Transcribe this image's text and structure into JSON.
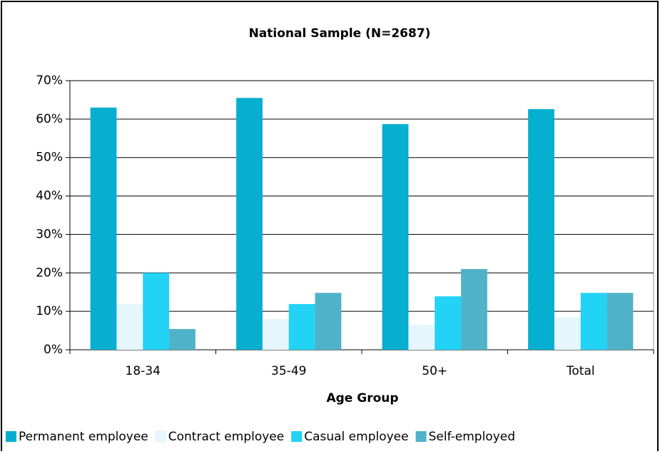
{
  "chart_data": {
    "type": "bar",
    "title": "National Sample (N=2687)",
    "x_label": "Age Group",
    "categories": [
      "18-34",
      "35-49",
      "50+",
      "Total"
    ],
    "series": [
      {
        "name": "Permanent employee",
        "color": "#06afd0",
        "values": [
          63,
          65.5,
          58.7,
          62.6
        ]
      },
      {
        "name": "Contract employee",
        "color": "#e6f6fd",
        "values": [
          11.9,
          8,
          6.5,
          8.5
        ]
      },
      {
        "name": "Casual employee",
        "color": "#22d3f6",
        "values": [
          20,
          11.9,
          13.9,
          14.8
        ]
      },
      {
        "name": "Self-employed",
        "color": "#4fb2c8",
        "values": [
          5.4,
          14.8,
          21,
          14.8
        ]
      }
    ],
    "ylim": [
      0,
      70
    ],
    "yticks": [
      {
        "value": 0,
        "label": "0%"
      },
      {
        "value": 10,
        "label": "10%"
      },
      {
        "value": 20,
        "label": "20%"
      },
      {
        "value": 30,
        "label": "30%"
      },
      {
        "value": 40,
        "label": "40%"
      },
      {
        "value": 50,
        "label": "50%"
      },
      {
        "value": 60,
        "label": "60%"
      },
      {
        "value": 70,
        "label": "70%"
      }
    ],
    "grid": true,
    "legend": "bottom"
  }
}
